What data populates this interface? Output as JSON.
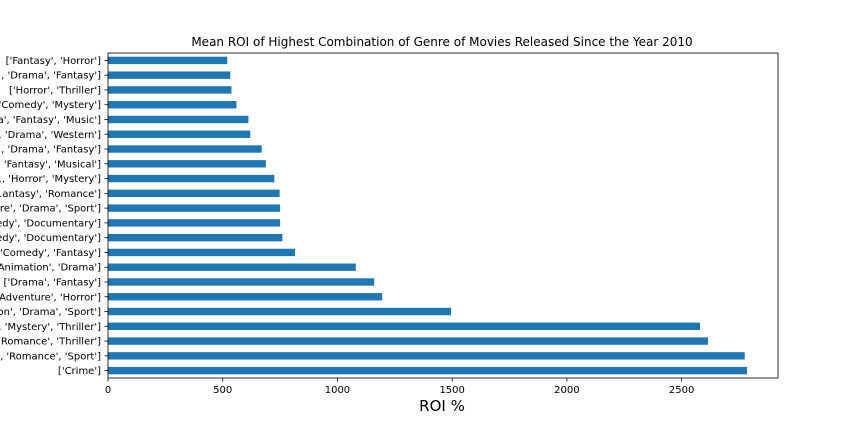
{
  "chart_data": {
    "type": "bar",
    "orientation": "horizontal",
    "title": "Mean ROI of Highest Combination of Genre of Movies Released Since the Year 2010",
    "xlabel": "ROI %",
    "ylabel": "",
    "xlim": [
      0,
      2920
    ],
    "xticks": [
      0,
      500,
      1000,
      1500,
      2000,
      2500
    ],
    "grid": false,
    "color": "#1f77b4",
    "categories": [
      "['Crime']",
      "..., 'Romance', 'Sport']",
      "...Romance', 'Thriller']",
      "... 'Mystery', 'Thriller']",
      "...on', 'Drama', 'Sport']",
      "...Adventure', 'Horror']",
      "... ['Drama', 'Fantasy']",
      "...Animation', 'Drama']",
      "...'Comedy', 'Fantasy']",
      "...edy', 'Documentary']",
      "...edy', 'Documentary']",
      "...re', 'Drama', 'Sport']",
      "...antasy', 'Romance']",
      "..., 'Horror', 'Mystery']",
      "... 'Fantasy', 'Musical']",
      "..., 'Drama', 'Fantasy']",
      "... 'Drama', 'Western']",
      "...a', 'Fantasy', 'Music']",
      "...'Comedy', 'Mystery']",
      "['Horror', 'Thriller']",
      "..., 'Drama', 'Fantasy']",
      "['Fantasy', 'Horror']"
    ],
    "values": [
      2785,
      2775,
      2615,
      2580,
      1495,
      1195,
      1160,
      1080,
      815,
      760,
      750,
      750,
      748,
      725,
      688,
      670,
      620,
      612,
      560,
      538,
      533,
      520
    ]
  }
}
